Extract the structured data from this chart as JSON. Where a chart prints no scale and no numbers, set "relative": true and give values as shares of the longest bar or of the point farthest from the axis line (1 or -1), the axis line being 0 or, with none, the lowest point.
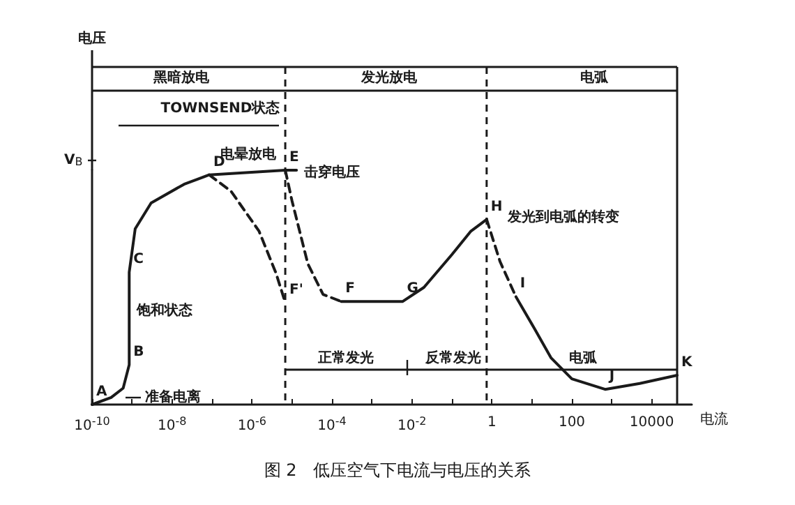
{
  "chart_data": {
    "type": "line",
    "title": "图 2　低压空气下电流与电压的关系",
    "xlabel": "电流",
    "relative": true,
    "log": "x",
    "tick_labels": "x",
    "marker": "none",
    "xlim": [
      1e-10,
      100000.0
    ],
    "xticks": [
      {
        "value": 1e-10,
        "label": "10$^{-10}$"
      },
      {
        "value": 1e-09,
        "label": null
      },
      {
        "value": 1e-08,
        "label": "10$^{-8}$"
      },
      {
        "value": 1e-07,
        "label": null
      },
      {
        "value": 1e-06,
        "label": "10$^{-6}$"
      },
      {
        "value": 1e-05,
        "label": null
      },
      {
        "value": 0.0001,
        "label": "10$^{-4}$"
      },
      {
        "value": 0.001,
        "label": null
      },
      {
        "value": 0.01,
        "label": "10$^{-2}$"
      },
      {
        "value": 0.1,
        "label": null
      },
      1,
      {
        "value": 10,
        "label": null
      },
      100,
      {
        "value": 1000,
        "label": null
      },
      10000
    ],
    "series": [
      {
        "color": "#1a1a1a",
        "line_style": "solid",
        "x": [
          1e-10,
          3e-10,
          6e-10,
          8.5e-10,
          8.5e-10,
          1.2e-09,
          3e-09,
          2e-08,
          8.5e-08,
          6.8e-06,
          1.3e-05
        ],
        "values": [
          0,
          0.03,
          0.07,
          0.17,
          0.565,
          0.75,
          0.86,
          0.94,
          0.98,
          1,
          1
        ]
      },
      {
        "color": "#1a1a1a",
        "line_style": "dashed",
        "x": [
          8.5e-08,
          3e-07,
          1.5e-06,
          4e-06,
          6.8e-06
        ],
        "values": [
          0.98,
          0.91,
          0.74,
          0.56,
          0.435
        ]
      },
      {
        "color": "#1a1a1a",
        "line_style": "dashed",
        "x": [
          6.8e-06,
          1e-05,
          2.5e-05,
          6e-05,
          0.00017
        ],
        "values": [
          1,
          0.87,
          0.6,
          0.47,
          0.44
        ]
      },
      {
        "color": "#1a1a1a",
        "line_style": "solid",
        "x": [
          0.00017,
          0.0059,
          0.02,
          0.1,
          0.3,
          0.74
        ],
        "values": [
          0.44,
          0.44,
          0.5,
          0.64,
          0.74,
          0.79
        ]
      },
      {
        "color": "#1a1a1a",
        "line_style": "dashed",
        "x": [
          0.74,
          1.6,
          4
        ],
        "values": [
          0.79,
          0.61,
          0.46
        ]
      },
      {
        "color": "#1a1a1a",
        "line_style": "solid",
        "x": [
          4,
          12,
          30,
          100,
          680,
          5000,
          43000
        ],
        "values": [
          0.46,
          0.32,
          0.2,
          0.11,
          0.065,
          0.09,
          0.125
        ]
      }
    ],
    "ref_lines": [
      {
        "axis": "x",
        "value": 6.8e-06,
        "line_style": "dashed",
        "color": "#1a1a1a"
      },
      {
        "axis": "x",
        "value": 0.74,
        "line_style": "dashed",
        "color": "#1a1a1a"
      },
      {
        "axis": "x",
        "value": 43000,
        "line_style": "solid",
        "color": "#1a1a1a"
      }
    ],
    "annotations": [
      "V$_{B}$",
      "电压",
      "黑暗放电",
      "发光放电",
      "电弧",
      "正常发光",
      "反常发光",
      "电弧",
      "TOWNSEND状态",
      {
        "text": "A",
        "x": 1e-10,
        "y": 0
      },
      {
        "text": "B",
        "x": 8.5e-10,
        "y": 0.17
      },
      {
        "text": "C",
        "x": 8.5e-10,
        "y": 0.565
      },
      {
        "text": "D",
        "x": 8.5e-08,
        "y": 0.98
      },
      {
        "text": "E",
        "x": 6.8e-06,
        "y": 1
      },
      {
        "text": "F'",
        "x": 6.8e-06,
        "y": 0.435
      },
      {
        "text": "F",
        "x": 0.00017,
        "y": 0.44
      },
      {
        "text": "G",
        "x": 0.0059,
        "y": 0.44
      },
      {
        "text": "H",
        "x": 0.74,
        "y": 0.79
      },
      {
        "text": "I",
        "x": 4,
        "y": 0.46
      },
      {
        "text": "J",
        "x": 680,
        "y": 0.065
      },
      {
        "text": "K",
        "x": 43000,
        "y": 0.125
      },
      {
        "text": "饱和状态",
        "x": 1.3e-09,
        "y": 0.4
      },
      "准备电离",
      "电晕放电",
      "击穿电压",
      "发光到电弧的转变"
    ]
  }
}
